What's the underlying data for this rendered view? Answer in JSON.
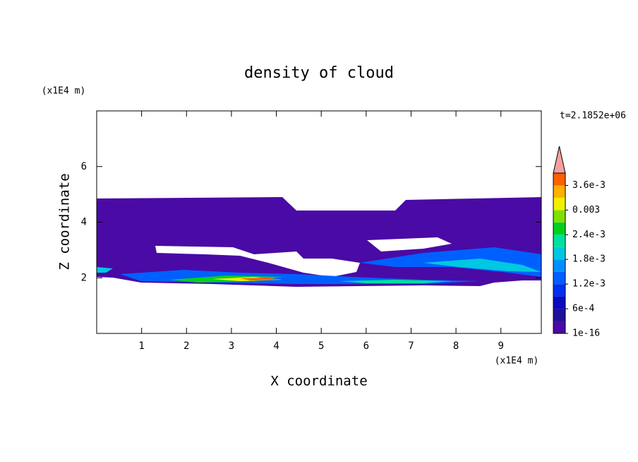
{
  "chart_data": {
    "type": "contour",
    "title": "density of cloud",
    "x_label": "X coordinate",
    "y_label": "Z coordinate",
    "x_unit": "(x1E4 m)",
    "y_unit": "(x1E4 m)",
    "time_label": "t=2.1852e+06",
    "xlim": [
      0,
      9.9
    ],
    "xticks": [
      1,
      2,
      3,
      4,
      5,
      6,
      7,
      8,
      9
    ],
    "ylim": [
      0,
      8
    ],
    "yticks": [
      2,
      4,
      6
    ],
    "colorbar": {
      "lim": [
        1e-16,
        0.0039
      ],
      "ticks": [
        {
          "value": 1e-16,
          "label": "1e-16"
        },
        {
          "value": 0.0006,
          "label": "6e-4"
        },
        {
          "value": 0.0012,
          "label": "1.2e-3"
        },
        {
          "value": 0.0018,
          "label": "1.8e-3"
        },
        {
          "value": 0.0024,
          "label": "2.4e-3"
        },
        0.003,
        {
          "value": 0.0036,
          "label": "3.6e-3"
        }
      ],
      "colors": [
        "#4a0aa5",
        "#20109a",
        "#0a0ac0",
        "#0030f0",
        "#0060ff",
        "#0090ff",
        "#00c8e0",
        "#00e0a0",
        "#00d020",
        "#80e000",
        "#f0f000",
        "#ffb000",
        "#ff6000"
      ],
      "extend_color": "#f4a0a0"
    }
  }
}
